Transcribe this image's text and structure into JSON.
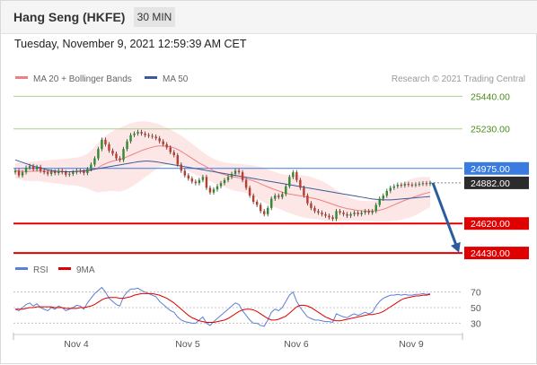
{
  "header": {
    "title": "Hang Seng (HKFE)",
    "timeframe": "30 MIN"
  },
  "datetime": "Tuesday, November 9, 2021 12:59:39 AM CET",
  "colors": {
    "ma20": "#f08080",
    "ma50": "#3b5a9a",
    "bollinger_fill": "#fde3e3",
    "resistance": "#a9d18e",
    "pivot": "#3a7be0",
    "support": "#e00000",
    "candle_up": "#2e8b2e",
    "candle_down": "#c0392b",
    "rsi": "#5b7fd6",
    "rsi_ma": "#e00000",
    "arrow": "#2b5c9e"
  },
  "chart_data": [
    {
      "type": "candlestick",
      "legend": [
        {
          "name": "MA 20 + Bollinger Bands",
          "color": "#f08080"
        },
        {
          "name": "MA 50",
          "color": "#3b5a9a"
        }
      ],
      "legend_position": "top-left",
      "watermark": "Research © 2021 Trading Central",
      "x_ticks": [
        "Nov 4",
        "Nov 5",
        "Nov 6",
        "Nov 9"
      ],
      "ylim": [
        24390,
        25500
      ],
      "grid": false,
      "price_levels": [
        {
          "value": 25440.0,
          "label": "25440.00",
          "kind": "resistance"
        },
        {
          "value": 25230.0,
          "label": "25230.00",
          "kind": "resistance"
        },
        {
          "value": 24975.0,
          "label": "24975.00",
          "kind": "pivot"
        },
        {
          "value": 24882.0,
          "label": "24882.00",
          "kind": "last"
        },
        {
          "value": 24620.0,
          "label": "24620.00",
          "kind": "support"
        },
        {
          "value": 24430.0,
          "label": "24430.00",
          "kind": "support"
        }
      ],
      "close": [
        24960,
        24930,
        24950,
        24980,
        24990,
        24970,
        24985,
        24960,
        24950,
        24940,
        24955,
        24945,
        24960,
        24950,
        24935,
        24940,
        24950,
        24960,
        24955,
        24945,
        24970,
        25000,
        25040,
        25100,
        25160,
        25130,
        25090,
        25070,
        25040,
        25030,
        25100,
        25150,
        25190,
        25200,
        25210,
        25200,
        25190,
        25185,
        25180,
        25170,
        25150,
        25130,
        25110,
        25080,
        25060,
        25000,
        24960,
        24930,
        24910,
        24890,
        24880,
        24900,
        24920,
        24850,
        24820,
        24840,
        24860,
        24880,
        24900,
        24920,
        24940,
        24960,
        24950,
        24900,
        24850,
        24800,
        24760,
        24740,
        24700,
        24680,
        24720,
        24780,
        24800,
        24790,
        24810,
        24860,
        24920,
        24950,
        24900,
        24850,
        24800,
        24750,
        24720,
        24700,
        24690,
        24680,
        24670,
        24660,
        24650,
        24700,
        24690,
        24680,
        24670,
        24680,
        24690,
        24680,
        24690,
        24700,
        24690,
        24700,
        24740,
        24780,
        24800,
        24830,
        24850,
        24860,
        24870,
        24865,
        24875,
        24870,
        24868,
        24872,
        24876,
        24880,
        24875,
        24882
      ],
      "ma20": [
        24960,
        24958,
        24956,
        24955,
        24956,
        24957,
        24958,
        24958,
        24957,
        24956,
        24956,
        24955,
        24955,
        24955,
        24954,
        24954,
        24954,
        24955,
        24955,
        24955,
        24958,
        24963,
        24970,
        24980,
        24995,
        25005,
        25015,
        25022,
        25028,
        25032,
        25040,
        25050,
        25060,
        25070,
        25080,
        25090,
        25098,
        25105,
        25112,
        25118,
        25120,
        25120,
        25118,
        25114,
        25108,
        25098,
        25085,
        25070,
        25055,
        25040,
        25025,
        25010,
        24998,
        24985,
        24972,
        24960,
        24950,
        24942,
        24935,
        24928,
        24922,
        24918,
        24915,
        24912,
        24908,
        24902,
        24895,
        24886,
        24876,
        24866,
        24856,
        24846,
        24838,
        24830,
        24822,
        24815,
        24810,
        24806,
        24802,
        24798,
        24794,
        24790,
        24785,
        24780,
        24775,
        24768,
        24760,
        24752,
        24744,
        24736,
        24728,
        24722,
        24716,
        24712,
        24708,
        24704,
        24702,
        24700,
        24700,
        24700,
        24702,
        24706,
        24712,
        24720,
        24730,
        24740,
        24750,
        24760,
        24770,
        24778,
        24786,
        24794,
        24802,
        24810,
        24816,
        24822
      ],
      "bb_upper": [
        25010,
        25012,
        25014,
        25016,
        25018,
        25020,
        25022,
        25024,
        25026,
        25028,
        25030,
        25032,
        25034,
        25036,
        25038,
        25040,
        25042,
        25045,
        25050,
        25058,
        25070,
        25090,
        25115,
        25140,
        25165,
        25185,
        25200,
        25215,
        25228,
        25238,
        25248,
        25258,
        25266,
        25272,
        25276,
        25278,
        25278,
        25276,
        25272,
        25266,
        25258,
        25248,
        25238,
        25226,
        25214,
        25200,
        25186,
        25170,
        25152,
        25134,
        25116,
        25098,
        25080,
        25064,
        25050,
        25038,
        25028,
        25020,
        25014,
        25010,
        25008,
        25006,
        25004,
        25002,
        25000,
        24998,
        24995,
        24990,
        24984,
        24976,
        24968,
        24960,
        24952,
        24944,
        24938,
        24934,
        24932,
        24932,
        24932,
        24932,
        24930,
        24926,
        24920,
        24912,
        24904,
        24894,
        24882,
        24868,
        24852,
        24836,
        24820,
        24806,
        24794,
        24784,
        24776,
        24770,
        24766,
        24764,
        24764,
        24766,
        24770,
        24778,
        24790,
        24806,
        24824,
        24842,
        24860,
        24876,
        24890,
        24900,
        24908,
        24914,
        24918,
        24920,
        24920,
        24918
      ],
      "bb_lower": [
        24910,
        24905,
        24900,
        24896,
        24894,
        24894,
        24894,
        24892,
        24888,
        24884,
        24882,
        24878,
        24876,
        24874,
        24870,
        24868,
        24866,
        24865,
        24860,
        24852,
        24846,
        24836,
        24825,
        24820,
        24825,
        24825,
        24830,
        24830,
        24828,
        24826,
        24832,
        24842,
        24854,
        24868,
        24884,
        24902,
        24918,
        24934,
        24952,
        24970,
        24982,
        24992,
        24998,
        25002,
        25002,
        24996,
        24984,
        24970,
        24958,
        24946,
        24934,
        24922,
        24916,
        24906,
        24894,
        24882,
        24872,
        24864,
        24856,
        24846,
        24836,
        24830,
        24826,
        24822,
        24816,
        24806,
        24795,
        24782,
        24768,
        24756,
        24744,
        24732,
        24724,
        24716,
        24706,
        24696,
        24688,
        24680,
        24672,
        24664,
        24658,
        24654,
        24650,
        24648,
        24646,
        24642,
        24638,
        24636,
        24636,
        24636,
        24636,
        24638,
        24638,
        24640,
        24640,
        24638,
        24638,
        24636,
        24636,
        24634,
        24634,
        24634,
        24634,
        24634,
        24636,
        24638,
        24640,
        24644,
        24650,
        24656,
        24664,
        24674,
        24686,
        24700,
        24712,
        24726
      ],
      "ma50": [
        25030,
        25022,
        25014,
        25006,
        24998,
        24990,
        24984,
        24978,
        24972,
        24966,
        24962,
        24958,
        24956,
        24954,
        24954,
        24954,
        24955,
        24956,
        24958,
        24960,
        24963,
        24966,
        24970,
        24974,
        24978,
        24982,
        24986,
        24990,
        24994,
        24998,
        25002,
        25006,
        25010,
        25014,
        25018,
        25020,
        25022,
        25022,
        25020,
        25018,
        25014,
        25010,
        25006,
        25002,
        24998,
        24994,
        24990,
        24986,
        24982,
        24978,
        24974,
        24970,
        24966,
        24962,
        24958,
        24954,
        24950,
        24946,
        24942,
        24938,
        24934,
        24930,
        24926,
        24922,
        24918,
        24914,
        24910,
        24906,
        24902,
        24898,
        24894,
        24890,
        24886,
        24882,
        24878,
        24874,
        24870,
        24866,
        24862,
        24858,
        24854,
        24850,
        24846,
        24842,
        24838,
        24834,
        24830,
        24826,
        24822,
        24818,
        24814,
        24810,
        24806,
        24802,
        24798,
        24794,
        24790,
        24786,
        24782,
        24778,
        24776,
        24774,
        24772,
        24772,
        24772,
        24774,
        24776,
        24778,
        24780,
        24782,
        24784,
        24786,
        24788,
        24790,
        24792,
        24794
      ]
    },
    {
      "type": "line",
      "legend": [
        {
          "name": "RSI",
          "color": "#5b7fd6"
        },
        {
          "name": "9MA",
          "color": "#e00000"
        }
      ],
      "y_ticks": [
        70,
        50,
        30
      ],
      "ylim": [
        20,
        80
      ],
      "rsi": [
        48,
        46,
        50,
        54,
        56,
        52,
        55,
        50,
        48,
        46,
        50,
        48,
        52,
        50,
        46,
        48,
        50,
        53,
        52,
        48,
        56,
        62,
        68,
        72,
        76,
        70,
        62,
        58,
        54,
        52,
        64,
        70,
        74,
        74,
        75,
        72,
        70,
        68,
        66,
        64,
        58,
        54,
        50,
        46,
        44,
        38,
        34,
        32,
        31,
        30,
        30,
        34,
        38,
        30,
        27,
        32,
        36,
        40,
        44,
        48,
        52,
        56,
        54,
        46,
        40,
        34,
        30,
        30,
        27,
        26,
        34,
        44,
        48,
        46,
        50,
        58,
        66,
        70,
        58,
        50,
        44,
        38,
        36,
        34,
        34,
        33,
        32,
        32,
        31,
        42,
        40,
        38,
        37,
        40,
        42,
        40,
        42,
        44,
        42,
        44,
        52,
        58,
        62,
        64,
        66,
        66,
        67,
        66,
        67,
        66,
        66,
        67,
        67,
        68,
        67,
        68
      ],
      "rsi_ma": [
        48,
        48,
        48,
        49,
        50,
        50,
        51,
        51,
        51,
        51,
        51,
        50,
        50,
        50,
        49,
        49,
        49,
        49,
        50,
        50,
        51,
        52,
        54,
        57,
        60,
        62,
        63,
        63,
        63,
        62,
        62,
        63,
        64,
        66,
        67,
        68,
        68,
        68,
        68,
        67,
        66,
        64,
        62,
        59,
        56,
        52,
        48,
        44,
        40,
        37,
        35,
        33,
        32,
        31,
        31,
        31,
        32,
        33,
        34,
        36,
        39,
        42,
        45,
        47,
        48,
        48,
        47,
        45,
        42,
        39,
        36,
        34,
        34,
        35,
        37,
        39,
        43,
        47,
        51,
        53,
        53,
        52,
        50,
        47,
        44,
        41,
        38,
        36,
        34,
        33,
        33,
        34,
        35,
        36,
        37,
        38,
        39,
        40,
        41,
        41,
        42,
        43,
        45,
        48,
        51,
        54,
        57,
        60,
        62,
        63,
        64,
        65,
        65,
        66,
        66,
        67
      ]
    }
  ]
}
